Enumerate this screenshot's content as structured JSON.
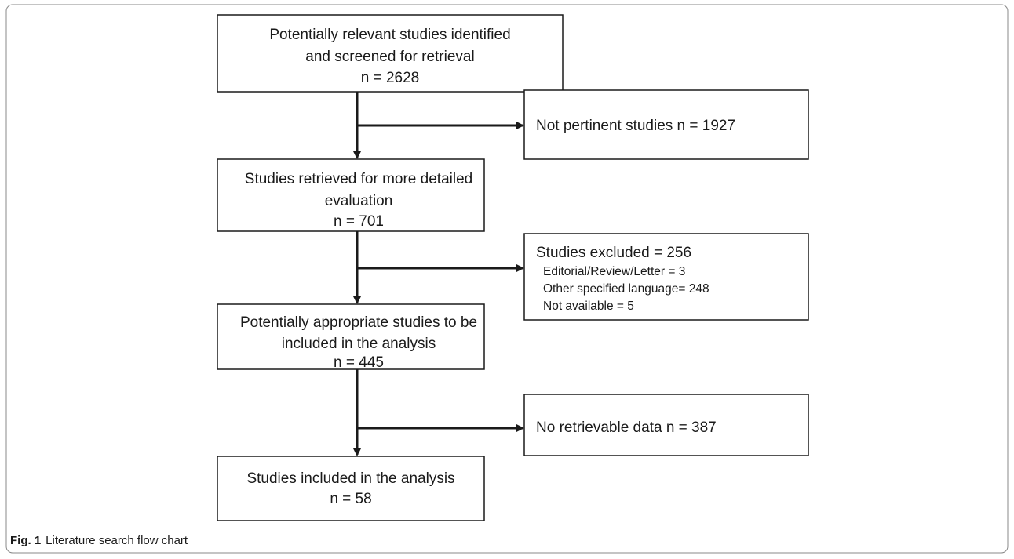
{
  "nodes": [
    {
      "lines": [
        "Potentially relevant studies identified",
        "and screened for retrieval",
        "n = 2628"
      ]
    },
    {
      "lines": [
        "Not pertinent studies n = 1927"
      ]
    },
    {
      "lines": [
        "Studies retrieved for more detailed",
        "evaluation",
        "n = 701"
      ]
    },
    {
      "lines": [
        "Studies excluded = 256"
      ],
      "details": [
        "Editorial/Review/Letter = 3",
        "Other specified language= 248",
        "Not available = 5"
      ]
    },
    {
      "lines": [
        "Potentially appropriate studies to be",
        "included in the analysis",
        "n = 445"
      ]
    },
    {
      "lines": [
        "No retrievable data n = 387"
      ]
    },
    {
      "lines": [
        "Studies included in the analysis",
        "n = 58"
      ]
    }
  ],
  "caption": {
    "label": "Fig. 1",
    "text": "Literature search flow chart"
  }
}
